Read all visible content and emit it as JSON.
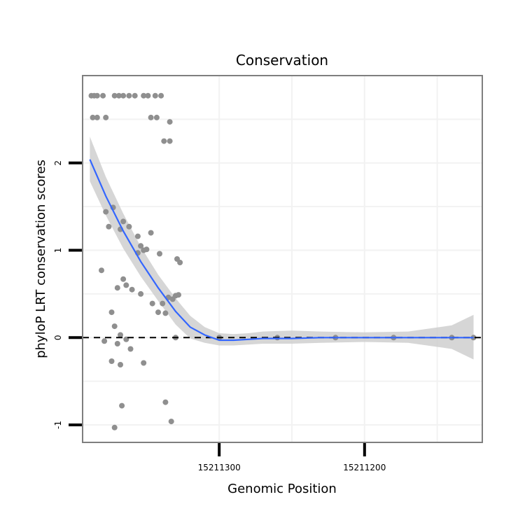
{
  "chart_data": {
    "type": "scatter",
    "title": "Conservation",
    "xlabel": "Genomic Position",
    "ylabel": "phyloP LRT conservation scores",
    "x_reversed": true,
    "xlim": [
      15211119,
      15211394
    ],
    "ylim": [
      -1.2,
      3.0
    ],
    "x_ticks": [
      15211300,
      15211200
    ],
    "x_tick_labels": [
      "15211300",
      "15211200"
    ],
    "y_ticks": [
      -1,
      0,
      1,
      2
    ],
    "y_tick_labels": [
      "-1",
      "0",
      "1",
      "2"
    ],
    "reference_line": {
      "y": 0,
      "style": "dashed"
    },
    "grid": true,
    "colors": {
      "points": "#8f8f8f",
      "smooth_line": "#3366ff",
      "confidence_band": "#cccccc",
      "panel_border": "#7f7f7f",
      "grid": "#f2f2f2"
    },
    "points": [
      [
        15211388,
        2.77
      ],
      [
        15211386,
        2.77
      ],
      [
        15211384,
        2.77
      ],
      [
        15211380,
        2.77
      ],
      [
        15211372,
        2.77
      ],
      [
        15211369,
        2.77
      ],
      [
        15211366,
        2.77
      ],
      [
        15211362,
        2.77
      ],
      [
        15211358,
        2.77
      ],
      [
        15211352,
        2.77
      ],
      [
        15211349,
        2.77
      ],
      [
        15211344,
        2.77
      ],
      [
        15211340,
        2.77
      ],
      [
        15211387,
        2.52
      ],
      [
        15211384,
        2.52
      ],
      [
        15211378,
        2.52
      ],
      [
        15211347,
        2.52
      ],
      [
        15211343,
        2.52
      ],
      [
        15211334,
        2.47
      ],
      [
        15211338,
        2.25
      ],
      [
        15211334,
        2.25
      ],
      [
        15211373,
        1.49
      ],
      [
        15211378,
        1.44
      ],
      [
        15211376,
        1.27
      ],
      [
        15211366,
        1.33
      ],
      [
        15211362,
        1.27
      ],
      [
        15211368,
        1.24
      ],
      [
        15211356,
        1.16
      ],
      [
        15211347,
        1.2
      ],
      [
        15211354,
        1.05
      ],
      [
        15211352,
        1.0
      ],
      [
        15211350,
        1.01
      ],
      [
        15211356,
        0.97
      ],
      [
        15211341,
        0.96
      ],
      [
        15211329,
        0.9
      ],
      [
        15211327,
        0.86
      ],
      [
        15211381,
        0.77
      ],
      [
        15211366,
        0.67
      ],
      [
        15211364,
        0.6
      ],
      [
        15211360,
        0.55
      ],
      [
        15211354,
        0.5
      ],
      [
        15211370,
        0.57
      ],
      [
        15211335,
        0.46
      ],
      [
        15211332,
        0.44
      ],
      [
        15211330,
        0.48
      ],
      [
        15211339,
        0.39
      ],
      [
        15211346,
        0.39
      ],
      [
        15211328,
        0.49
      ],
      [
        15211342,
        0.29
      ],
      [
        15211337,
        0.28
      ],
      [
        15211374,
        0.29
      ],
      [
        15211372,
        0.13
      ],
      [
        15211368,
        0.03
      ],
      [
        15211364,
        -0.02
      ],
      [
        15211370,
        -0.07
      ],
      [
        15211379,
        -0.04
      ],
      [
        15211361,
        -0.13
      ],
      [
        15211374,
        -0.27
      ],
      [
        15211368,
        -0.31
      ],
      [
        15211352,
        -0.29
      ],
      [
        15211337,
        -0.74
      ],
      [
        15211367,
        -0.78
      ],
      [
        15211333,
        -0.96
      ],
      [
        15211372,
        -1.03
      ],
      [
        15211330,
        0.0
      ],
      [
        15211300,
        0.0
      ],
      [
        15211260,
        0.0
      ],
      [
        15211220,
        0.0
      ],
      [
        15211180,
        0.0
      ],
      [
        15211140,
        0.0
      ],
      [
        15211125,
        0.0
      ]
    ],
    "smooth_line": [
      [
        15211389,
        2.04
      ],
      [
        15211378,
        1.62
      ],
      [
        15211366,
        1.22
      ],
      [
        15211354,
        0.87
      ],
      [
        15211342,
        0.57
      ],
      [
        15211330,
        0.3
      ],
      [
        15211320,
        0.12
      ],
      [
        15211310,
        0.03
      ],
      [
        15211300,
        -0.03
      ],
      [
        15211290,
        -0.03
      ],
      [
        15211280,
        -0.02
      ],
      [
        15211270,
        -0.01
      ],
      [
        15211250,
        -0.01
      ],
      [
        15211230,
        0.0
      ],
      [
        15211200,
        0.0
      ],
      [
        15211170,
        0.0
      ],
      [
        15211140,
        0.0
      ],
      [
        15211125,
        0.0
      ]
    ],
    "confidence_upper": [
      [
        15211389,
        2.3
      ],
      [
        15211378,
        1.84
      ],
      [
        15211366,
        1.42
      ],
      [
        15211354,
        1.04
      ],
      [
        15211342,
        0.72
      ],
      [
        15211330,
        0.45
      ],
      [
        15211320,
        0.25
      ],
      [
        15211310,
        0.12
      ],
      [
        15211300,
        0.05
      ],
      [
        15211290,
        0.04
      ],
      [
        15211280,
        0.05
      ],
      [
        15211270,
        0.07
      ],
      [
        15211250,
        0.08
      ],
      [
        15211230,
        0.07
      ],
      [
        15211200,
        0.06
      ],
      [
        15211170,
        0.07
      ],
      [
        15211140,
        0.14
      ],
      [
        15211125,
        0.26
      ]
    ],
    "confidence_lower": [
      [
        15211389,
        1.79
      ],
      [
        15211378,
        1.4
      ],
      [
        15211366,
        1.02
      ],
      [
        15211354,
        0.7
      ],
      [
        15211342,
        0.42
      ],
      [
        15211330,
        0.15
      ],
      [
        15211320,
        -0.01
      ],
      [
        15211310,
        -0.06
      ],
      [
        15211300,
        -0.09
      ],
      [
        15211290,
        -0.09
      ],
      [
        15211280,
        -0.08
      ],
      [
        15211270,
        -0.07
      ],
      [
        15211250,
        -0.07
      ],
      [
        15211230,
        -0.06
      ],
      [
        15211200,
        -0.05
      ],
      [
        15211170,
        -0.06
      ],
      [
        15211140,
        -0.13
      ],
      [
        15211125,
        -0.25
      ]
    ]
  }
}
